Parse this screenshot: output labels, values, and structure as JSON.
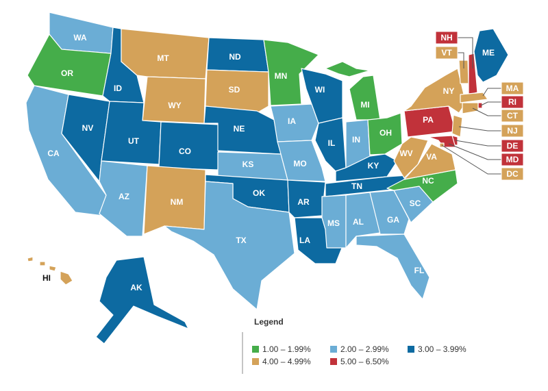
{
  "map": {
    "states": [
      {
        "label": "WA",
        "color": "#6badd5"
      },
      {
        "label": "OR",
        "color": "#45ad4a"
      },
      {
        "label": "CA",
        "color": "#6badd5"
      },
      {
        "label": "NV",
        "color": "#0d6aa1"
      },
      {
        "label": "ID",
        "color": "#0d6aa1"
      },
      {
        "label": "MT",
        "color": "#d4a259"
      },
      {
        "label": "WY",
        "color": "#d4a259"
      },
      {
        "label": "UT",
        "color": "#0d6aa1"
      },
      {
        "label": "CO",
        "color": "#0d6aa1"
      },
      {
        "label": "AZ",
        "color": "#6badd5"
      },
      {
        "label": "NM",
        "color": "#d4a259"
      },
      {
        "label": "ND",
        "color": "#0d6aa1"
      },
      {
        "label": "SD",
        "color": "#d4a259"
      },
      {
        "label": "NE",
        "color": "#0d6aa1"
      },
      {
        "label": "KS",
        "color": "#6badd5"
      },
      {
        "label": "OK",
        "color": "#0d6aa1"
      },
      {
        "label": "TX",
        "color": "#6badd5"
      },
      {
        "label": "MN",
        "color": "#45ad4a"
      },
      {
        "label": "IA",
        "color": "#6badd5"
      },
      {
        "label": "MO",
        "color": "#6badd5"
      },
      {
        "label": "AR",
        "color": "#0d6aa1"
      },
      {
        "label": "LA",
        "color": "#0d6aa1"
      },
      {
        "label": "WI",
        "color": "#0d6aa1"
      },
      {
        "label": "IL",
        "color": "#0d6aa1"
      },
      {
        "label": "MI",
        "color": "#45ad4a"
      },
      {
        "label": "IN",
        "color": "#6badd5"
      },
      {
        "label": "OH",
        "color": "#45ad4a"
      },
      {
        "label": "KY",
        "color": "#0d6aa1"
      },
      {
        "label": "TN",
        "color": "#0d6aa1"
      },
      {
        "label": "MS",
        "color": "#6badd5"
      },
      {
        "label": "AL",
        "color": "#6badd5"
      },
      {
        "label": "GA",
        "color": "#6badd5"
      },
      {
        "label": "FL",
        "color": "#6badd5"
      },
      {
        "label": "SC",
        "color": "#6badd5"
      },
      {
        "label": "NC",
        "color": "#45ad4a"
      },
      {
        "label": "VA",
        "color": "#d4a259"
      },
      {
        "label": "WV",
        "color": "#d4a259"
      },
      {
        "label": "PA",
        "color": "#c1323a"
      },
      {
        "label": "NY",
        "color": "#d4a259"
      },
      {
        "label": "VT",
        "color": "#d4a259"
      },
      {
        "label": "NH",
        "color": "#c1323a"
      },
      {
        "label": "ME",
        "color": "#0d6aa1"
      },
      {
        "label": "MA",
        "color": "#d4a259"
      },
      {
        "label": "RI",
        "color": "#c1323a"
      },
      {
        "label": "CT",
        "color": "#d4a259"
      },
      {
        "label": "NJ",
        "color": "#d4a259"
      },
      {
        "label": "DE",
        "color": "#c1323a"
      },
      {
        "label": "MD",
        "color": "#c1323a"
      },
      {
        "label": "DC",
        "color": "#d4a259"
      },
      {
        "label": "AK",
        "color": "#0d6aa1"
      },
      {
        "label": "HI",
        "color": "#d4a259"
      }
    ],
    "legend": {
      "title": "Legend",
      "items": [
        {
          "label": "1.00 – 1.99%",
          "color": "#45ad4a"
        },
        {
          "label": "2.00 – 2.99%",
          "color": "#6badd5"
        },
        {
          "label": "3.00 – 3.99%",
          "color": "#0d6aa1"
        },
        {
          "label": "4.00 – 4.99%",
          "color": "#d4a259"
        },
        {
          "label": "5.00 – 6.50%",
          "color": "#c1323a"
        }
      ]
    }
  }
}
